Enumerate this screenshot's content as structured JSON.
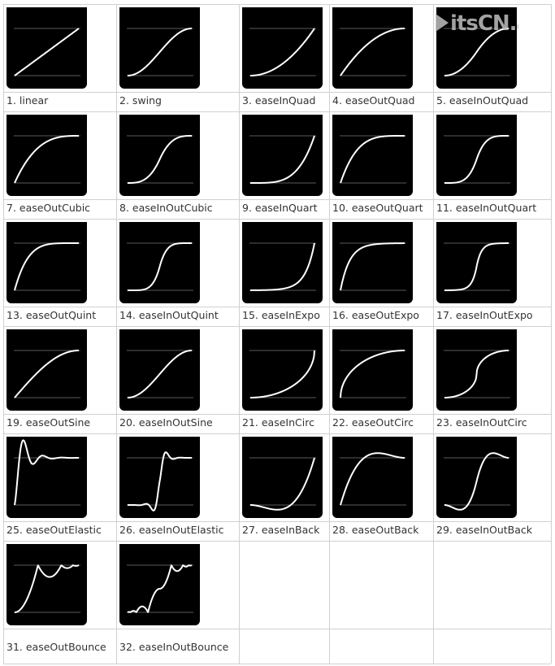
{
  "easings": [
    {
      "label": "1. linear",
      "fn": "linear"
    },
    {
      "label": "2. swing",
      "fn": "swing"
    },
    {
      "label": "3. easeInQuad",
      "fn": "easeInQuad"
    },
    {
      "label": "4. easeOutQuad",
      "fn": "easeOutQuad"
    },
    {
      "label": "5. easeInOutQuad",
      "fn": "easeInOutQuad"
    },
    {
      "label": "7. easeOutCubic",
      "fn": "easeOutCubic"
    },
    {
      "label": "8. easeInOutCubic",
      "fn": "easeInOutCubic"
    },
    {
      "label": "9. easeInQuart",
      "fn": "easeInQuart"
    },
    {
      "label": "10. easeOutQuart",
      "fn": "easeOutQuart"
    },
    {
      "label": "11. easeInOutQuart",
      "fn": "easeInOutQuart"
    },
    {
      "label": "13. easeOutQuint",
      "fn": "easeOutQuint"
    },
    {
      "label": "14. easeInOutQuint",
      "fn": "easeInOutQuint"
    },
    {
      "label": "15. easeInExpo",
      "fn": "easeInExpo"
    },
    {
      "label": "16. easeOutExpo",
      "fn": "easeOutExpo"
    },
    {
      "label": "17. easeInOutExpo",
      "fn": "easeInOutExpo"
    },
    {
      "label": "19. easeOutSine",
      "fn": "easeOutSine"
    },
    {
      "label": "20. easeInOutSine",
      "fn": "easeInOutSine"
    },
    {
      "label": "21. easeInCirc",
      "fn": "easeInCirc"
    },
    {
      "label": "22. easeOutCirc",
      "fn": "easeOutCirc"
    },
    {
      "label": "23. easeInOutCirc",
      "fn": "easeInOutCirc"
    },
    {
      "label": "25. easeOutElastic",
      "fn": "easeOutElastic"
    },
    {
      "label": "26. easeInOutElastic",
      "fn": "easeInOutElastic"
    },
    {
      "label": "27. easeInBack",
      "fn": "easeInBack"
    },
    {
      "label": "28. easeOutBack",
      "fn": "easeOutBack"
    },
    {
      "label": "29. easeInOutBack",
      "fn": "easeInOutBack"
    },
    {
      "label": "31. easeOutBounce",
      "fn": "easeOutBounce"
    },
    {
      "label": "32. easeInOutBounce",
      "fn": "easeInOutBounce"
    }
  ],
  "watermark": {
    "text": "itsCN.a"
  },
  "colors": {
    "thumb_bg": "#000000",
    "curve": "#ffffff",
    "guide": "#5a5a5a",
    "border": "#d0d0d0",
    "label": "#333333"
  }
}
